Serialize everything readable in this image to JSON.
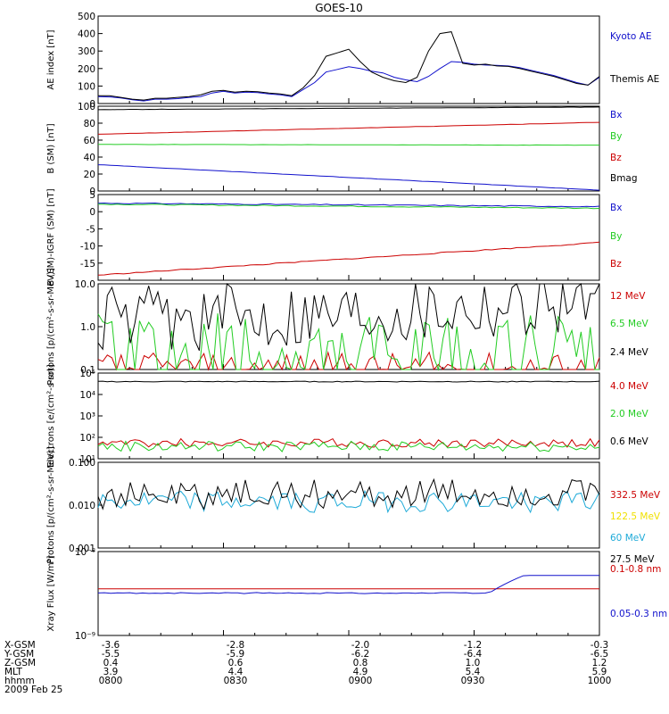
{
  "title": "GOES-10",
  "colors": {
    "black": "#000000",
    "red": "#cc0000",
    "green": "#22cc22",
    "blue": "#1010cc",
    "cyan": "#1eaad8",
    "yellow": "#f0e000"
  },
  "footer": {
    "rows": [
      {
        "label": "X-GSM",
        "values": [
          "-3.6",
          "-2.8",
          "-2.0",
          "-1.2",
          "-0.3"
        ]
      },
      {
        "label": "Y-GSM",
        "values": [
          "-5.5",
          "-5.9",
          "-6.2",
          "-6.4",
          "-6.5"
        ]
      },
      {
        "label": "Z-GSM",
        "values": [
          "0.4",
          "0.6",
          "0.8",
          "1.0",
          "1.2"
        ]
      },
      {
        "label": "MLT",
        "values": [
          "3.9",
          "4.4",
          "4.9",
          "5.4",
          "5.9"
        ]
      },
      {
        "label": "hhmm",
        "values": [
          "0800",
          "0830",
          "0900",
          "0930",
          "1000"
        ]
      }
    ],
    "date": "2009 Feb 25"
  },
  "chart_data": [
    {
      "type": "line",
      "ylabel": "AE index [nT]",
      "ylim": [
        0,
        500
      ],
      "yticks": [
        "0",
        "100",
        "200",
        "300",
        "400",
        "500"
      ],
      "series": [
        {
          "name": "Kyoto AE",
          "color": "#1010cc",
          "values": [
            40,
            38,
            32,
            22,
            15,
            25,
            25,
            28,
            35,
            40,
            60,
            70,
            60,
            65,
            62,
            55,
            50,
            40,
            80,
            120,
            180,
            195,
            210,
            200,
            185,
            175,
            150,
            135,
            125,
            155,
            200,
            240,
            235,
            225,
            220,
            218,
            215,
            205,
            190,
            175,
            160,
            140,
            120,
            105,
            150
          ]
        },
        {
          "name": "Themis AE",
          "color": "#000000",
          "values": [
            45,
            45,
            35,
            25,
            20,
            30,
            30,
            35,
            40,
            50,
            70,
            75,
            65,
            70,
            68,
            60,
            55,
            45,
            90,
            160,
            270,
            290,
            310,
            240,
            180,
            150,
            130,
            120,
            150,
            300,
            400,
            410,
            230,
            220,
            225,
            215,
            212,
            200,
            185,
            170,
            155,
            135,
            115,
            105,
            155
          ]
        }
      ]
    },
    {
      "type": "line",
      "ylabel": "B (SM) [nT]",
      "ylim": [
        0,
        100
      ],
      "yticks": [
        "0",
        "20",
        "40",
        "60",
        "80",
        "100"
      ],
      "series": [
        {
          "name": "Bx",
          "color": "#1010cc",
          "start": 31,
          "end": 1
        },
        {
          "name": "By",
          "color": "#22cc22",
          "start": 55,
          "end": 54
        },
        {
          "name": "Bz",
          "color": "#cc0000",
          "start": 67,
          "end": 81
        },
        {
          "name": "Bmag",
          "color": "#000000",
          "start": 96,
          "end": 99
        }
      ]
    },
    {
      "type": "line",
      "ylabel": "B (SM)-IGRF (SM) [nT]",
      "ylim": [
        -20,
        5
      ],
      "yticks": [
        "-15",
        "-10",
        "-5",
        "0",
        "5"
      ],
      "series": [
        {
          "name": "Bx",
          "color": "#1010cc",
          "start": 2.5,
          "end": 1.5
        },
        {
          "name": "By",
          "color": "#22cc22",
          "start": 2.2,
          "end": 1.0
        },
        {
          "name": "Bz",
          "color": "#cc0000",
          "start": -18.5,
          "end": -9.0
        }
      ]
    },
    {
      "type": "line",
      "ylabel": "Protons [p/(cm²-s-sr-MeV)]",
      "yscale": "log",
      "ylim": [
        0.1,
        10
      ],
      "yticks": [
        "0.1",
        "1.0",
        "10.0"
      ],
      "series": [
        {
          "name": "12 MeV",
          "color": "#cc0000"
        },
        {
          "name": "6.5 MeV",
          "color": "#22cc22"
        },
        {
          "name": "2.4 MeV",
          "color": "#000000"
        }
      ]
    },
    {
      "type": "line",
      "ylabel": "Electrons [e/(cm²-s-sr)]",
      "yscale": "log",
      "ylim": [
        10,
        100000
      ],
      "yticks": [
        "10¹",
        "10²",
        "10³",
        "10⁴",
        "10⁵"
      ],
      "series": [
        {
          "name": "4.0 MeV",
          "color": "#cc0000"
        },
        {
          "name": "2.0 MeV",
          "color": "#22cc22"
        },
        {
          "name": "0.6 MeV",
          "color": "#000000"
        }
      ]
    },
    {
      "type": "line",
      "ylabel": "Protons [p/(cm²-s-sr-MeV)]",
      "yscale": "log",
      "ylim": [
        0.001,
        0.1
      ],
      "yticks": [
        "0.001",
        "0.010",
        "0.100"
      ],
      "series": [
        {
          "name": "332.5 MeV",
          "color": "#cc0000"
        },
        {
          "name": "122.5 MeV",
          "color": "#f0e000"
        },
        {
          "name": "60 MeV",
          "color": "#1eaad8"
        },
        {
          "name": "27.5 MeV",
          "color": "#000000"
        }
      ]
    },
    {
      "type": "line",
      "ylabel": "Xray Flux [W/m²]",
      "yscale": "log",
      "ylim": [
        1e-09,
        1e-08
      ],
      "yticks": [
        "10⁻⁹",
        "10⁻⁸"
      ],
      "series": [
        {
          "name": "0.1-0.8 nm",
          "color": "#cc0000",
          "start": 3.6e-09,
          "end": 3.6e-09
        },
        {
          "name": "0.05-0.3 nm",
          "color": "#1010cc",
          "start": 3.2e-09,
          "end": 5.2e-09
        }
      ]
    }
  ]
}
